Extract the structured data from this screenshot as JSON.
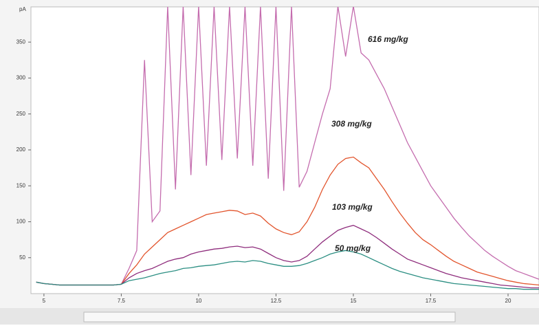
{
  "chart_data": {
    "type": "line",
    "y_label": "pA",
    "x": [
      4.75,
      5,
      5.25,
      5.5,
      5.75,
      6,
      6.25,
      6.5,
      6.75,
      7,
      7.25,
      7.5,
      7.75,
      8,
      8.25,
      8.5,
      8.75,
      9,
      9.25,
      9.5,
      9.75,
      10,
      10.25,
      10.5,
      10.75,
      11,
      11.25,
      11.5,
      11.75,
      12,
      12.25,
      12.5,
      12.75,
      13,
      13.25,
      13.5,
      13.75,
      14,
      14.25,
      14.5,
      14.75,
      15,
      15.25,
      15.5,
      15.75,
      16,
      16.25,
      16.5,
      16.75,
      17,
      17.25,
      17.5,
      17.75,
      18,
      18.25,
      18.5,
      18.75,
      19,
      19.25,
      19.5,
      19.75,
      20,
      20.25,
      20.5,
      20.75,
      21
    ],
    "series": [
      {
        "name": "616 mg/kg",
        "color": "#c46cae",
        "values": [
          16,
          14,
          13,
          12,
          12,
          12,
          12,
          12,
          12,
          12,
          12,
          13,
          35,
          60,
          325,
          100,
          115,
          400,
          145,
          400,
          165,
          400,
          178,
          400,
          186,
          400,
          188,
          400,
          178,
          400,
          160,
          400,
          143,
          400,
          148,
          170,
          210,
          250,
          285,
          400,
          330,
          400,
          335,
          325,
          305,
          285,
          260,
          235,
          210,
          190,
          170,
          150,
          135,
          120,
          105,
          92,
          80,
          70,
          60,
          52,
          45,
          38,
          32,
          28,
          24,
          20
        ]
      },
      {
        "name": "308 mg/kg",
        "color": "#e2542c",
        "values": [
          16,
          14,
          13,
          12,
          12,
          12,
          12,
          12,
          12,
          12,
          12,
          13,
          28,
          40,
          55,
          65,
          75,
          85,
          90,
          95,
          100,
          105,
          110,
          112,
          114,
          116,
          115,
          110,
          112,
          108,
          98,
          90,
          85,
          82,
          86,
          100,
          120,
          145,
          165,
          180,
          188,
          190,
          182,
          175,
          160,
          145,
          128,
          112,
          98,
          85,
          75,
          68,
          60,
          52,
          45,
          40,
          35,
          30,
          27,
          24,
          21,
          18,
          16,
          14,
          13,
          12
        ]
      },
      {
        "name": "103 mg/kg",
        "color": "#8e2c7c",
        "values": [
          16,
          14,
          13,
          12,
          12,
          12,
          12,
          12,
          12,
          12,
          12,
          13,
          22,
          28,
          32,
          35,
          40,
          45,
          48,
          50,
          55,
          58,
          60,
          62,
          63,
          65,
          66,
          64,
          65,
          62,
          56,
          50,
          46,
          44,
          46,
          52,
          62,
          72,
          80,
          88,
          92,
          95,
          90,
          85,
          78,
          70,
          62,
          55,
          48,
          44,
          40,
          36,
          32,
          28,
          25,
          22,
          20,
          18,
          16,
          14,
          12,
          11,
          10,
          9,
          8,
          8
        ]
      },
      {
        "name": "50 mg/kg",
        "color": "#2a8e82",
        "values": [
          16,
          14,
          13,
          12,
          12,
          12,
          12,
          12,
          12,
          12,
          12,
          13,
          18,
          20,
          22,
          25,
          28,
          30,
          32,
          35,
          36,
          38,
          39,
          40,
          42,
          44,
          45,
          44,
          46,
          45,
          42,
          40,
          38,
          38,
          39,
          42,
          46,
          50,
          55,
          58,
          60,
          58,
          55,
          50,
          45,
          40,
          35,
          31,
          28,
          25,
          22,
          20,
          18,
          16,
          14,
          13,
          12,
          11,
          10,
          9,
          8,
          7,
          7,
          6,
          6,
          6
        ]
      }
    ],
    "xlim": [
      4.58,
      21
    ],
    "ylim": [
      0,
      399
    ],
    "xticks": [
      5,
      7.5,
      10,
      12.5,
      15,
      17.5,
      20
    ],
    "yticks": [
      50,
      100,
      150,
      200,
      250,
      300,
      350
    ]
  }
}
